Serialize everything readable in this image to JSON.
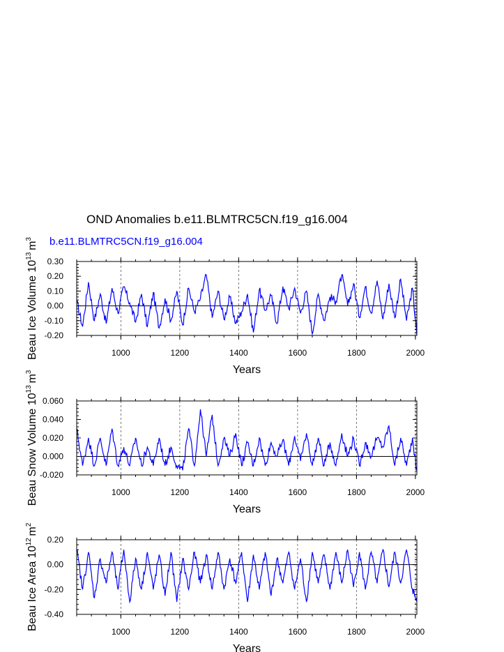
{
  "title": "OND Anomalies b.e11.BLMTRC5CN.f19_g16.004",
  "subtitle": "b.e11.BLMTRC5CN.f19_g16.004",
  "series_color": "#0000ff",
  "chart_data": [
    {
      "type": "line",
      "xlabel": "Years",
      "ylabel": "Beau Ice Volume 10^13 m^3",
      "ylabel_base": "Beau Ice Volume 10",
      "ylabel_exp": "13",
      "ylabel_unit": "m",
      "ylabel_unit_exp": "3",
      "xlim": [
        850,
        2005
      ],
      "ylim": [
        -0.2,
        0.3
      ],
      "xticks": [
        1000,
        1200,
        1400,
        1600,
        1800,
        2000
      ],
      "xtick_labels": [
        "1000",
        "1200",
        "1400",
        "1600",
        "1800",
        "2000"
      ],
      "yticks": [
        -0.2,
        -0.1,
        0.0,
        0.1,
        0.2,
        0.3
      ],
      "ytick_labels": [
        "-0.20",
        "-0.10",
        "0.00",
        "0.10",
        "0.20",
        "0.30"
      ],
      "grid": "vertical dashed at major x ticks",
      "x": [
        850,
        870,
        890,
        910,
        930,
        950,
        970,
        990,
        1010,
        1030,
        1050,
        1070,
        1090,
        1110,
        1130,
        1150,
        1170,
        1190,
        1210,
        1230,
        1250,
        1270,
        1290,
        1310,
        1330,
        1350,
        1370,
        1390,
        1410,
        1430,
        1450,
        1470,
        1490,
        1510,
        1530,
        1550,
        1570,
        1590,
        1610,
        1630,
        1650,
        1670,
        1690,
        1710,
        1730,
        1750,
        1770,
        1790,
        1810,
        1830,
        1850,
        1870,
        1890,
        1910,
        1930,
        1950,
        1970,
        1990,
        2005
      ],
      "y": [
        0.03,
        -0.14,
        0.16,
        -0.1,
        0.08,
        -0.12,
        0.12,
        -0.05,
        0.13,
        0.02,
        -0.11,
        0.08,
        -0.14,
        0.09,
        -0.15,
        0.05,
        -0.1,
        0.1,
        -0.13,
        0.12,
        -0.04,
        0.05,
        0.21,
        -0.08,
        0.1,
        -0.09,
        0.06,
        -0.12,
        -0.04,
        0.08,
        -0.18,
        0.11,
        -0.03,
        0.07,
        -0.12,
        0.13,
        -0.02,
        0.12,
        -0.05,
        0.1,
        -0.19,
        0.08,
        -0.1,
        0.06,
        0.03,
        0.21,
        0.0,
        0.15,
        -0.08,
        0.13,
        -0.05,
        0.17,
        -0.09,
        0.15,
        -0.08,
        0.18,
        -0.1,
        0.12,
        -0.2
      ]
    },
    {
      "type": "line",
      "xlabel": "Years",
      "ylabel": "Beau Snow Volume 10^13 m^3",
      "ylabel_base": "Beau Snow Volume 10",
      "ylabel_exp": "13",
      "ylabel_unit": "m",
      "ylabel_unit_exp": "3",
      "xlim": [
        850,
        2005
      ],
      "ylim": [
        -0.02,
        0.06
      ],
      "xticks": [
        1000,
        1200,
        1400,
        1600,
        1800,
        2000
      ],
      "xtick_labels": [
        "1000",
        "1200",
        "1400",
        "1600",
        "1800",
        "2000"
      ],
      "yticks": [
        -0.02,
        0.0,
        0.02,
        0.04,
        0.06
      ],
      "ytick_labels": [
        "-0.020",
        "0.000",
        "0.020",
        "0.040",
        "0.060"
      ],
      "grid": "vertical dashed at major x ticks",
      "x": [
        850,
        870,
        890,
        910,
        930,
        950,
        970,
        990,
        1010,
        1030,
        1050,
        1070,
        1090,
        1110,
        1130,
        1150,
        1170,
        1190,
        1210,
        1230,
        1250,
        1270,
        1290,
        1310,
        1330,
        1350,
        1370,
        1390,
        1410,
        1430,
        1450,
        1470,
        1490,
        1510,
        1530,
        1550,
        1570,
        1590,
        1610,
        1630,
        1650,
        1670,
        1690,
        1710,
        1730,
        1750,
        1770,
        1790,
        1810,
        1830,
        1850,
        1870,
        1890,
        1910,
        1930,
        1950,
        1970,
        1990,
        2005
      ],
      "y": [
        0.03,
        -0.01,
        0.02,
        -0.01,
        0.02,
        -0.01,
        0.03,
        -0.01,
        0.01,
        -0.01,
        0.02,
        -0.01,
        0.01,
        -0.01,
        0.02,
        -0.01,
        0.01,
        -0.01,
        -0.015,
        0.03,
        -0.01,
        0.051,
        0.0,
        0.045,
        -0.01,
        0.02,
        0.0,
        0.025,
        -0.01,
        0.015,
        -0.01,
        0.02,
        -0.01,
        0.015,
        0.0,
        0.018,
        -0.01,
        0.022,
        -0.005,
        0.025,
        -0.01,
        0.02,
        -0.01,
        0.015,
        -0.01,
        0.025,
        0.0,
        0.02,
        -0.01,
        0.015,
        0.0,
        0.02,
        0.01,
        0.033,
        -0.01,
        0.02,
        -0.01,
        0.02,
        -0.015
      ]
    },
    {
      "type": "line",
      "xlabel": "Years",
      "ylabel": "Beau Ice Area 10^12 m^2",
      "ylabel_base": "Beau Ice Area 10",
      "ylabel_exp": "12",
      "ylabel_unit": "m",
      "ylabel_unit_exp": "2",
      "xlim": [
        850,
        2005
      ],
      "ylim": [
        -0.4,
        0.2
      ],
      "xticks": [
        1000,
        1200,
        1400,
        1600,
        1800,
        2000
      ],
      "xtick_labels": [
        "1000",
        "1200",
        "1400",
        "1600",
        "1800",
        "2000"
      ],
      "yticks": [
        -0.4,
        -0.2,
        0.0,
        0.2
      ],
      "ytick_labels": [
        "-0.40",
        "-0.20",
        "0.00",
        "0.20"
      ],
      "grid": "vertical dashed at major x ticks",
      "x": [
        850,
        870,
        890,
        910,
        930,
        950,
        970,
        990,
        1010,
        1030,
        1050,
        1070,
        1090,
        1110,
        1130,
        1150,
        1170,
        1190,
        1210,
        1230,
        1250,
        1270,
        1290,
        1310,
        1330,
        1350,
        1370,
        1390,
        1410,
        1430,
        1450,
        1470,
        1490,
        1510,
        1530,
        1550,
        1570,
        1590,
        1610,
        1630,
        1650,
        1670,
        1690,
        1710,
        1730,
        1750,
        1770,
        1790,
        1810,
        1830,
        1850,
        1870,
        1890,
        1910,
        1930,
        1950,
        1970,
        1990,
        2005
      ],
      "y": [
        0.12,
        -0.2,
        0.1,
        -0.27,
        0.05,
        -0.15,
        0.1,
        -0.2,
        0.12,
        -0.3,
        0.05,
        -0.2,
        0.1,
        -0.2,
        0.08,
        -0.25,
        0.1,
        -0.3,
        0.05,
        -0.2,
        0.1,
        -0.15,
        0.08,
        -0.2,
        0.1,
        -0.2,
        0.05,
        -0.15,
        0.1,
        -0.3,
        0.08,
        -0.2,
        0.1,
        -0.25,
        0.05,
        -0.15,
        0.1,
        -0.2,
        0.05,
        -0.3,
        0.1,
        -0.15,
        0.08,
        -0.2,
        0.1,
        -0.15,
        0.12,
        -0.18,
        0.1,
        -0.2,
        0.1,
        -0.15,
        0.12,
        -0.18,
        0.1,
        -0.15,
        0.12,
        -0.2,
        -0.3
      ]
    }
  ]
}
